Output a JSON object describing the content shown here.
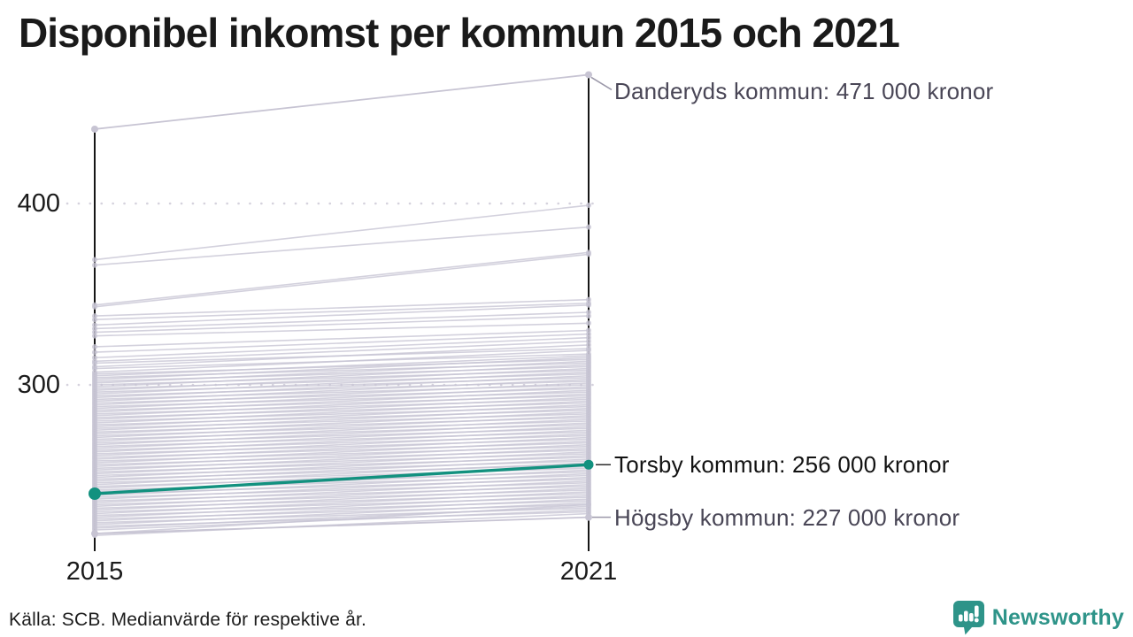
{
  "title": "Disponibel inkomst per kommun 2015 och 2021",
  "footer": {
    "source": "Källa: SCB. Medianvärde för respektive år."
  },
  "branding": {
    "name": "Newsworthy"
  },
  "colors": {
    "highlight": "#12917F",
    "line": "#C7C4D3",
    "axis": "#161616",
    "grid": "#D5D2DD",
    "leader": "#9B98A9",
    "leader_highlight": "#2B2B2B",
    "tick_text": "#1B1B1B",
    "annotation_text": "#494656",
    "annotation_text_highlight": "#121212",
    "title_text": "#1A1A1A",
    "brand": "#2E9489"
  },
  "chart_data": {
    "type": "line",
    "subtype": "slope-chart",
    "title": "Disponibel inkomst per kommun 2015 och 2021",
    "x_categories": [
      "2015",
      "2021"
    ],
    "yticks": [
      300,
      400
    ],
    "ylim": [
      210,
      480
    ],
    "unit": "tusen kronor",
    "grid": "horizontal dotted at yticks",
    "legend": false,
    "annotations": [
      {
        "id": "danderyds-kommun",
        "label": "Danderyds kommun: 471 000 kronor",
        "value": 471
      },
      {
        "id": "torsby-kommun",
        "label": "Torsby kommun: 256 000 kronor",
        "value": 256
      },
      {
        "id": "hogsby-kommun",
        "label": "Högsby kommun: 227 000 kronor",
        "value": 227
      }
    ],
    "series": [
      {
        "id": "danderyds-kommun",
        "name": "Danderyds kommun",
        "values": [
          441,
          471
        ],
        "role": "labeled"
      },
      {
        "id": "torsby-kommun",
        "name": "Torsby kommun",
        "values": [
          240,
          256
        ],
        "role": "highlighted"
      },
      {
        "id": "hogsby-kommun",
        "name": "Högsby kommun",
        "values": [
          218,
          227
        ],
        "role": "labeled"
      }
    ],
    "background_lines": [
      [
        369,
        399
      ],
      [
        366,
        387
      ],
      [
        344,
        373
      ],
      [
        343,
        372
      ],
      [
        338,
        347
      ],
      [
        336,
        345
      ],
      [
        333,
        344
      ],
      [
        331,
        340
      ],
      [
        329,
        338
      ],
      [
        327,
        334
      ],
      [
        321,
        330
      ],
      [
        318,
        328
      ],
      [
        315,
        326
      ],
      [
        313,
        324
      ],
      [
        312,
        320
      ],
      [
        310,
        322
      ],
      [
        309,
        317
      ],
      [
        307,
        319
      ],
      [
        306,
        314
      ],
      [
        305,
        316
      ],
      [
        304,
        312
      ],
      [
        303,
        315
      ],
      [
        302,
        310
      ],
      [
        301,
        313
      ],
      [
        300,
        308
      ],
      [
        299,
        311
      ],
      [
        298,
        306
      ],
      [
        297,
        309
      ],
      [
        296,
        304
      ],
      [
        295,
        307
      ],
      [
        294,
        302
      ],
      [
        293,
        305
      ],
      [
        292,
        300
      ],
      [
        291,
        303
      ],
      [
        290,
        298
      ],
      [
        289,
        301
      ],
      [
        288,
        296
      ],
      [
        287,
        299
      ],
      [
        286,
        294
      ],
      [
        285,
        297
      ],
      [
        284,
        292
      ],
      [
        283,
        295
      ],
      [
        282,
        290
      ],
      [
        281,
        293
      ],
      [
        280,
        288
      ],
      [
        279,
        291
      ],
      [
        278,
        286
      ],
      [
        277,
        289
      ],
      [
        276,
        284
      ],
      [
        275,
        287
      ],
      [
        274,
        282
      ],
      [
        273,
        285
      ],
      [
        272,
        280
      ],
      [
        271,
        283
      ],
      [
        270,
        278
      ],
      [
        269,
        281
      ],
      [
        268,
        276
      ],
      [
        267,
        279
      ],
      [
        266,
        274
      ],
      [
        265,
        277
      ],
      [
        264,
        272
      ],
      [
        263,
        275
      ],
      [
        262,
        270
      ],
      [
        261,
        273
      ],
      [
        260,
        268
      ],
      [
        259,
        271
      ],
      [
        258,
        266
      ],
      [
        257,
        269
      ],
      [
        256,
        264
      ],
      [
        255,
        267
      ],
      [
        254,
        262
      ],
      [
        253,
        265
      ],
      [
        252,
        260
      ],
      [
        251,
        263
      ],
      [
        250,
        258
      ],
      [
        249,
        261
      ],
      [
        248,
        256
      ],
      [
        247,
        259
      ],
      [
        246,
        254
      ],
      [
        245,
        257
      ],
      [
        244,
        252
      ],
      [
        243,
        255
      ],
      [
        242,
        250
      ],
      [
        241,
        253
      ],
      [
        240,
        248
      ],
      [
        239,
        251
      ],
      [
        238,
        246
      ],
      [
        237,
        249
      ],
      [
        236,
        244
      ],
      [
        235,
        247
      ],
      [
        234,
        242
      ],
      [
        233,
        245
      ],
      [
        232,
        240
      ],
      [
        231,
        243
      ],
      [
        230,
        238
      ],
      [
        229,
        241
      ],
      [
        228,
        236
      ],
      [
        227,
        239
      ],
      [
        226,
        234
      ],
      [
        225,
        237
      ],
      [
        224,
        232
      ],
      [
        223,
        235
      ],
      [
        222,
        230
      ],
      [
        221,
        233
      ],
      [
        220,
        231
      ],
      [
        218,
        234
      ],
      [
        217,
        229
      ]
    ]
  }
}
